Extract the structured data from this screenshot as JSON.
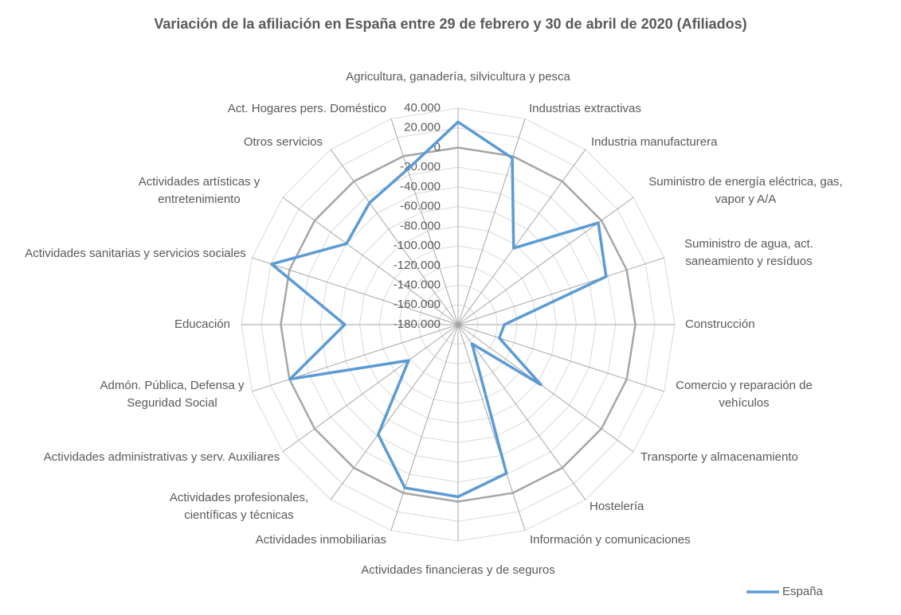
{
  "chart_data": {
    "type": "radar",
    "title": "Variación de la afiliación en España entre 29 de febrero y 30 de abril de 2020 (Afiliados)",
    "categories": [
      "Agricultura, ganadería, silvicultura y pesca",
      "Industrias extractivas",
      "Industria manufacturera",
      "Suministro de energía eléctrica, gas, vapor y A/A",
      "Suministro de agua, act. saneamiento y resíduos",
      "Construcción",
      "Comercio y reparación de vehículos",
      "Transporte y almacenamiento",
      "Hostelería",
      "Información y comunicaciones",
      "Actividades financieras y de seguros",
      "Actividades inmobiliarias",
      "Actividades profesionales, científicas y técnicas",
      "Actividades administrativas y serv. Auxiliares",
      "Admón. Pública, Defensa y Seguridad Social",
      "Educación",
      "Actividades sanitarias y servicios sociales",
      "Actividades artísticas y entretenimiento",
      "Otros servicios",
      "Act. Hogares pers. Doméstico"
    ],
    "series": [
      {
        "name": "España",
        "color": "#5b9bd5",
        "values": [
          26000,
          -2000,
          -84000,
          -4000,
          -22000,
          -133000,
          -136000,
          -76000,
          -156000,
          -21000,
          -5000,
          -5500,
          -42000,
          -118000,
          -500,
          -65000,
          19000,
          -40000,
          -27000,
          -14000
        ]
      }
    ],
    "ylim": [
      -180000,
      40000
    ],
    "yticks": [
      {
        "value": -180000,
        "label": "-180.000"
      },
      {
        "value": -160000,
        "label": "-160.000"
      },
      {
        "value": -140000,
        "label": "-140.000"
      },
      {
        "value": -120000,
        "label": "-120.000"
      },
      {
        "value": -100000,
        "label": "-100.000"
      },
      {
        "value": -80000,
        "label": "-80.000"
      },
      {
        "value": -60000,
        "label": "-60.000"
      },
      {
        "value": -40000,
        "label": "-40.000"
      },
      {
        "value": -20000,
        "label": "-20.000"
      },
      0,
      {
        "value": 20000,
        "label": "20.000"
      },
      {
        "value": 40000,
        "label": "40.000"
      }
    ],
    "grid": true,
    "legend": "bottom-right"
  }
}
